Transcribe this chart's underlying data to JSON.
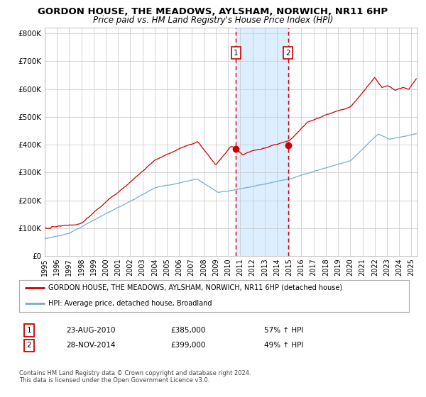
{
  "title": "GORDON HOUSE, THE MEADOWS, AYLSHAM, NORWICH, NR11 6HP",
  "subtitle": "Price paid vs. HM Land Registry's House Price Index (HPI)",
  "title_fontsize": 9.5,
  "subtitle_fontsize": 8.5,
  "ylim": [
    0,
    820000
  ],
  "yticks": [
    0,
    100000,
    200000,
    300000,
    400000,
    500000,
    600000,
    700000,
    800000
  ],
  "ytick_labels": [
    "£0",
    "£100K",
    "£200K",
    "£300K",
    "£400K",
    "£500K",
    "£600K",
    "£700K",
    "£800K"
  ],
  "xlim_start": 1995.0,
  "xlim_end": 2025.5,
  "xticks": [
    1995,
    1996,
    1997,
    1998,
    1999,
    2000,
    2001,
    2002,
    2003,
    2004,
    2005,
    2006,
    2007,
    2008,
    2009,
    2010,
    2011,
    2012,
    2013,
    2014,
    2015,
    2016,
    2017,
    2018,
    2019,
    2020,
    2021,
    2022,
    2023,
    2024,
    2025
  ],
  "line1_color": "#cc0000",
  "line2_color": "#7aadcf",
  "vline1_x": 2010.645,
  "vline2_x": 2014.91,
  "shade_color": "#ddeeff",
  "marker1_y": 385000,
  "marker2_y": 399000,
  "legend_line1": "GORDON HOUSE, THE MEADOWS, AYLSHAM, NORWICH, NR11 6HP (detached house)",
  "legend_line2": "HPI: Average price, detached house, Broadland",
  "table_row1_num": "1",
  "table_row1_date": "23-AUG-2010",
  "table_row1_price": "£385,000",
  "table_row1_hpi": "57% ↑ HPI",
  "table_row2_num": "2",
  "table_row2_date": "28-NOV-2014",
  "table_row2_price": "£399,000",
  "table_row2_hpi": "49% ↑ HPI",
  "footnote": "Contains HM Land Registry data © Crown copyright and database right 2024.\nThis data is licensed under the Open Government Licence v3.0.",
  "background_color": "#ffffff",
  "grid_color": "#cccccc"
}
